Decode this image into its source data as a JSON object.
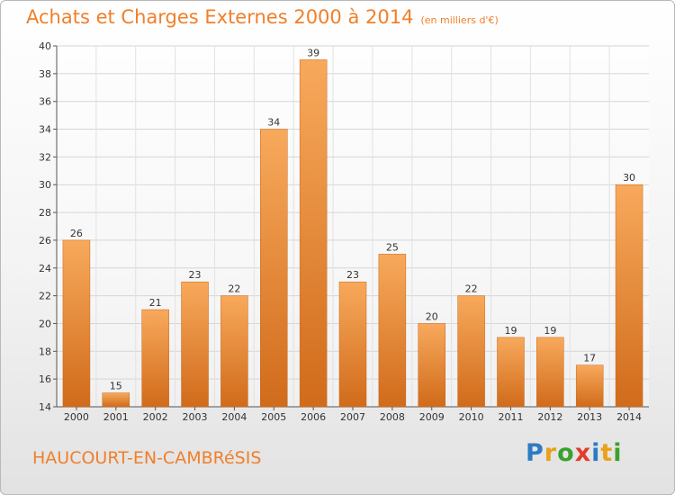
{
  "chart_data": {
    "type": "bar",
    "title": "Achats et Charges Externes 2000 à 2014",
    "unit_note": "(en milliers d'€)",
    "categories": [
      "2000",
      "2001",
      "2002",
      "2003",
      "2004",
      "2005",
      "2006",
      "2007",
      "2008",
      "2009",
      "2010",
      "2011",
      "2012",
      "2013",
      "2014"
    ],
    "values": [
      26,
      15,
      21,
      23,
      22,
      34,
      39,
      23,
      25,
      20,
      22,
      19,
      19,
      17,
      30
    ],
    "ylim": [
      14,
      40
    ],
    "yticks": [
      14,
      16,
      18,
      20,
      22,
      24,
      26,
      28,
      30,
      32,
      34,
      36,
      38,
      40
    ],
    "grid": true,
    "bar_color": "#f07f2a"
  },
  "footer": {
    "city": "HAUCOURT-EN-CAMBRéSIS",
    "logo_letters": [
      "P",
      "r",
      "o",
      "x",
      "i",
      "t",
      "i"
    ],
    "logo_colors": [
      "#2e7bc4",
      "#e8a21b",
      "#3aa12e",
      "#e23c2b",
      "#2e7bc4",
      "#e8a21b",
      "#3aa12e"
    ]
  }
}
